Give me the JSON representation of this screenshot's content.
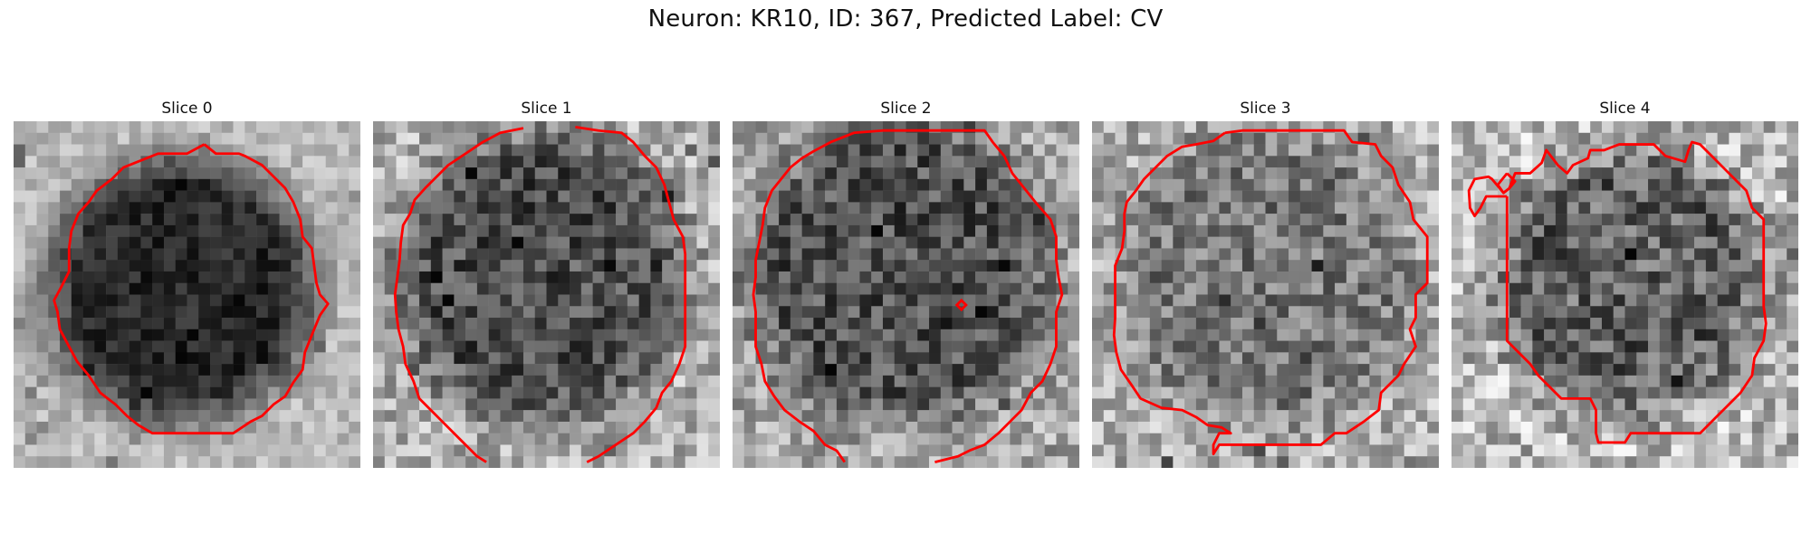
{
  "figure": {
    "title": "Neuron: KR10, ID: 367, Predicted Label: CV"
  },
  "panels": [
    {
      "title": "Slice 0"
    },
    {
      "title": "Slice 1"
    },
    {
      "title": "Slice 2"
    },
    {
      "title": "Slice 3"
    },
    {
      "title": "Slice 4"
    }
  ],
  "colors": {
    "contour": "#ff0000",
    "colormap": "gray"
  }
}
